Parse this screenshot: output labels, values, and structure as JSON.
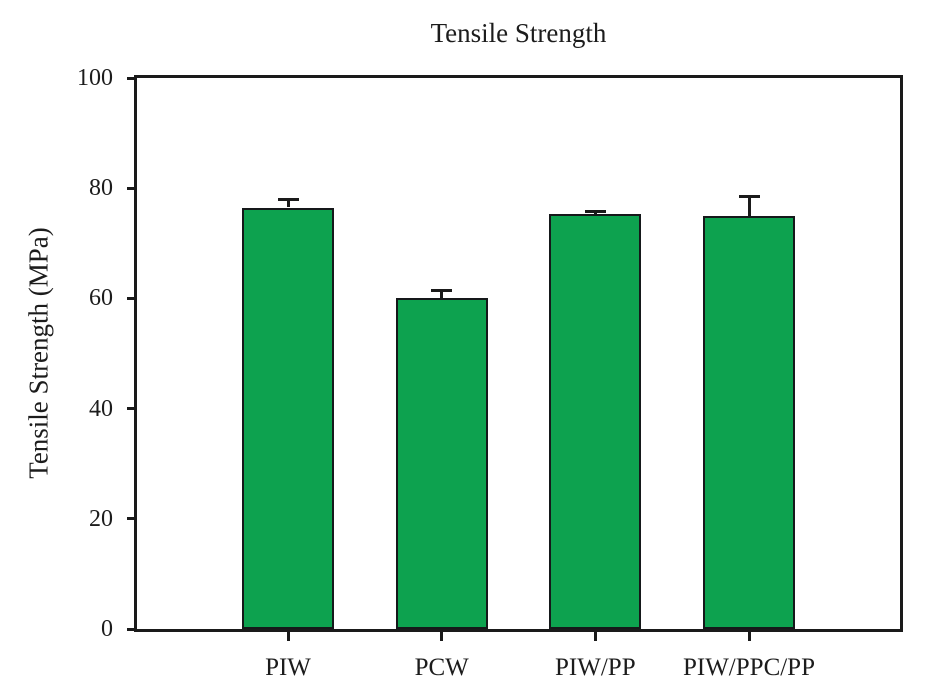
{
  "chart_data": {
    "type": "bar",
    "title": "Tensile Strength",
    "ylabel": "Tensile Strength (MPa)",
    "xlabel": "",
    "categories": [
      "PIW",
      "PCW",
      "PIW/PP",
      "PIW/PPC/PP"
    ],
    "values": [
      76.5,
      60,
      75.3,
      75
    ],
    "error_plus": [
      1.5,
      1.5,
      0.5,
      3.5
    ],
    "ylim": [
      0,
      100
    ],
    "yticks": [
      0,
      20,
      40,
      60,
      80,
      100
    ],
    "grid": false,
    "legend": false,
    "bar_color": "#0DA24F",
    "bar_edge_color": "#15181a",
    "error_color": "#1a1a1a",
    "axis_color": "#1a1a1a",
    "text_color": "#1c1c1c",
    "background": "#ffffff"
  }
}
